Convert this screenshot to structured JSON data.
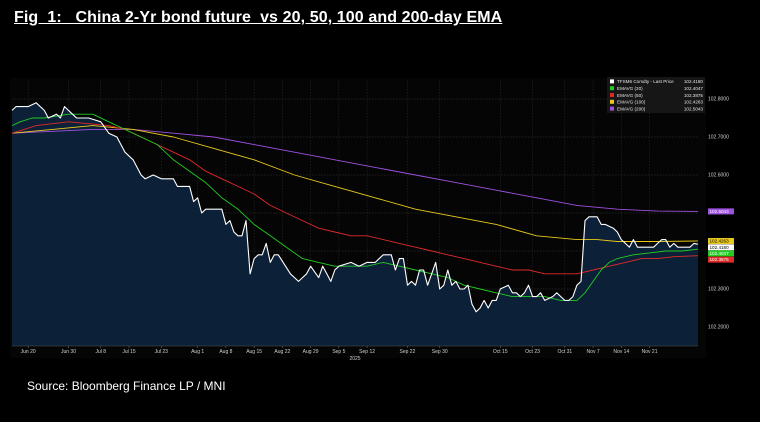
{
  "figure": {
    "title": "Fig  1:   China 2-Yr bond future  vs 20, 50, 100 and 200-day EMA",
    "source": "Source: Bloomberg Finance LP / MNI"
  },
  "colors": {
    "price": "#ffffff",
    "ema20": "#22cc22",
    "ema50": "#e02a2a",
    "ema100": "#e8c81a",
    "ema200": "#a050e0",
    "area": "#0c2038",
    "grid": "#3a3a3a"
  },
  "chart_data": {
    "type": "line",
    "x_start": "2025-06-16",
    "x_end": "2025-11-24",
    "ylim": [
      102.15,
      102.85
    ],
    "y_ticks": [
      102.2,
      102.3,
      102.4,
      102.5,
      102.6,
      102.7,
      102.8
    ],
    "y_tick_labels": [
      "102.2000",
      "102.3000",
      "102.4000",
      "102.5000",
      "102.6000",
      "102.7000",
      "102.8000"
    ],
    "x_ticks": [
      {
        "date": "2025-06-20",
        "label": "Jun 20"
      },
      {
        "date": "2025-06-30",
        "label": "Jun 30"
      },
      {
        "date": "2025-07-08",
        "label": "Jul 8"
      },
      {
        "date": "2025-07-15",
        "label": "Jul 15"
      },
      {
        "date": "2025-07-23",
        "label": "Jul 23"
      },
      {
        "date": "2025-08-01",
        "label": "Aug 1"
      },
      {
        "date": "2025-08-08",
        "label": "Aug 8"
      },
      {
        "date": "2025-08-15",
        "label": "Aug 15"
      },
      {
        "date": "2025-08-22",
        "label": "Aug 22"
      },
      {
        "date": "2025-08-29",
        "label": "Aug 29"
      },
      {
        "date": "2025-09-05",
        "label": "Sep 5"
      },
      {
        "date": "2025-09-12",
        "label": "Sep 12"
      },
      {
        "date": "2025-09-22",
        "label": "Sep 22"
      },
      {
        "date": "2025-09-30",
        "label": "Sep 30"
      },
      {
        "date": "2025-10-15",
        "label": "Oct 15"
      },
      {
        "date": "2025-10-23",
        "label": "Oct 23"
      },
      {
        "date": "2025-10-31",
        "label": "Oct 31"
      },
      {
        "date": "2025-11-07",
        "label": "Nov 7"
      },
      {
        "date": "2025-11-14",
        "label": "Nov 14"
      },
      {
        "date": "2025-11-21",
        "label": "Nov 21"
      }
    ],
    "year_label": "2025",
    "legend": [
      {
        "key": "price",
        "label": "TFSM6 Comdty - Last Price",
        "value": "102.4180"
      },
      {
        "key": "ema20",
        "label": "EMAVG (20)",
        "value": "102.4047"
      },
      {
        "key": "ema50",
        "label": "EMAVG (50)",
        "value": "102.3875"
      },
      {
        "key": "ema100",
        "label": "EMAVG (100)",
        "value": "102.4263"
      },
      {
        "key": "ema200",
        "label": "EMAVG (200)",
        "value": "102.5043"
      }
    ],
    "series": [
      {
        "name": "TFSM6 Comdty - Last Price",
        "key": "price",
        "values": [
          [
            0,
            102.77
          ],
          [
            1,
            102.78
          ],
          [
            4,
            102.78
          ],
          [
            6,
            102.79
          ],
          [
            8,
            102.77
          ],
          [
            9,
            102.75
          ],
          [
            11,
            102.76
          ],
          [
            12,
            102.75
          ],
          [
            13,
            102.78
          ],
          [
            15,
            102.76
          ],
          [
            16,
            102.75
          ],
          [
            19,
            102.75
          ],
          [
            22,
            102.74
          ],
          [
            24,
            102.71
          ],
          [
            26,
            102.7
          ],
          [
            28,
            102.66
          ],
          [
            30,
            102.64
          ],
          [
            31,
            102.62
          ],
          [
            32,
            102.6
          ],
          [
            33,
            102.59
          ],
          [
            35,
            102.6
          ],
          [
            37,
            102.59
          ],
          [
            40,
            102.59
          ],
          [
            41,
            102.57
          ],
          [
            44,
            102.57
          ],
          [
            45,
            102.53
          ],
          [
            46,
            102.54
          ],
          [
            47,
            102.5
          ],
          [
            48,
            102.51
          ],
          [
            52,
            102.51
          ],
          [
            53,
            102.47
          ],
          [
            54,
            102.48
          ],
          [
            55,
            102.45
          ],
          [
            56,
            102.44
          ],
          [
            57,
            102.44
          ],
          [
            58,
            102.48
          ],
          [
            59,
            102.34
          ],
          [
            60,
            102.38
          ],
          [
            61,
            102.39
          ],
          [
            62,
            102.39
          ],
          [
            63,
            102.42
          ],
          [
            64,
            102.37
          ],
          [
            65,
            102.39
          ],
          [
            66,
            102.39
          ],
          [
            69,
            102.34
          ],
          [
            70,
            102.33
          ],
          [
            71,
            102.32
          ],
          [
            72,
            102.33
          ],
          [
            73,
            102.34
          ],
          [
            74,
            102.36
          ],
          [
            76,
            102.33
          ],
          [
            77,
            102.36
          ],
          [
            78,
            102.34
          ],
          [
            79,
            102.32
          ],
          [
            80,
            102.35
          ],
          [
            81,
            102.36
          ],
          [
            84,
            102.37
          ],
          [
            86,
            102.36
          ],
          [
            88,
            102.37
          ],
          [
            90,
            102.37
          ],
          [
            92,
            102.39
          ],
          [
            94,
            102.39
          ],
          [
            95,
            102.35
          ],
          [
            96,
            102.38
          ],
          [
            97,
            102.38
          ],
          [
            98,
            102.31
          ],
          [
            99,
            102.32
          ],
          [
            100,
            102.31
          ],
          [
            101,
            102.35
          ],
          [
            102,
            102.35
          ],
          [
            103,
            102.31
          ],
          [
            104,
            102.34
          ],
          [
            105,
            102.37
          ],
          [
            106,
            102.3
          ],
          [
            107,
            102.31
          ],
          [
            108,
            102.35
          ],
          [
            109,
            102.31
          ],
          [
            110,
            102.32
          ],
          [
            111,
            102.3
          ],
          [
            112,
            102.3
          ],
          [
            113,
            102.31
          ],
          [
            114,
            102.26
          ],
          [
            115,
            102.24
          ],
          [
            116,
            102.25
          ],
          [
            117,
            102.27
          ],
          [
            118,
            102.25
          ],
          [
            119,
            102.27
          ],
          [
            120,
            102.27
          ],
          [
            121,
            102.3
          ],
          [
            123,
            102.31
          ],
          [
            124,
            102.29
          ],
          [
            125,
            102.29
          ],
          [
            126,
            102.28
          ],
          [
            127,
            102.29
          ],
          [
            128,
            102.31
          ],
          [
            129,
            102.28
          ],
          [
            130,
            102.28
          ],
          [
            131,
            102.29
          ],
          [
            132,
            102.27
          ],
          [
            134,
            102.28
          ],
          [
            135,
            102.29
          ],
          [
            136,
            102.28
          ],
          [
            137,
            102.27
          ],
          [
            138,
            102.27
          ],
          [
            139,
            102.28
          ],
          [
            140,
            102.31
          ],
          [
            141,
            102.32
          ],
          [
            142,
            102.48
          ],
          [
            143,
            102.49
          ],
          [
            144,
            102.49
          ],
          [
            145,
            102.49
          ],
          [
            146,
            102.47
          ],
          [
            147,
            102.47
          ],
          [
            149,
            102.46
          ],
          [
            150,
            102.45
          ],
          [
            151,
            102.43
          ],
          [
            152,
            102.42
          ],
          [
            153,
            102.41
          ],
          [
            154,
            102.43
          ],
          [
            155,
            102.41
          ],
          [
            156,
            102.41
          ],
          [
            157,
            102.41
          ],
          [
            158,
            102.41
          ],
          [
            159,
            102.41
          ],
          [
            160,
            102.42
          ],
          [
            161,
            102.43
          ],
          [
            162,
            102.43
          ],
          [
            163,
            102.41
          ],
          [
            164,
            102.42
          ],
          [
            165,
            102.41
          ],
          [
            166,
            102.41
          ],
          [
            167,
            102.41
          ],
          [
            168,
            102.41
          ],
          [
            169,
            102.42
          ],
          [
            170,
            102.418
          ]
        ]
      },
      {
        "name": "EMAVG (20)",
        "key": "ema20",
        "values": [
          [
            0,
            102.73
          ],
          [
            2,
            102.74
          ],
          [
            5,
            102.75
          ],
          [
            8,
            102.75
          ],
          [
            14,
            102.76
          ],
          [
            20,
            102.76
          ],
          [
            24,
            102.74
          ],
          [
            28,
            102.72
          ],
          [
            32,
            102.7
          ],
          [
            36,
            102.68
          ],
          [
            40,
            102.64
          ],
          [
            44,
            102.61
          ],
          [
            48,
            102.58
          ],
          [
            52,
            102.54
          ],
          [
            56,
            102.51
          ],
          [
            60,
            102.47
          ],
          [
            64,
            102.44
          ],
          [
            68,
            102.41
          ],
          [
            72,
            102.38
          ],
          [
            76,
            102.37
          ],
          [
            80,
            102.36
          ],
          [
            84,
            102.36
          ],
          [
            88,
            102.36
          ],
          [
            92,
            102.37
          ],
          [
            96,
            102.36
          ],
          [
            100,
            102.35
          ],
          [
            104,
            102.34
          ],
          [
            108,
            102.33
          ],
          [
            112,
            102.31
          ],
          [
            116,
            102.3
          ],
          [
            120,
            102.29
          ],
          [
            124,
            102.28
          ],
          [
            128,
            102.28
          ],
          [
            132,
            102.28
          ],
          [
            136,
            102.27
          ],
          [
            140,
            102.27
          ],
          [
            142,
            102.29
          ],
          [
            144,
            102.32
          ],
          [
            146,
            102.35
          ],
          [
            148,
            102.37
          ],
          [
            150,
            102.38
          ],
          [
            154,
            102.39
          ],
          [
            158,
            102.395
          ],
          [
            162,
            102.4
          ],
          [
            166,
            102.4
          ],
          [
            170,
            102.4047
          ]
        ]
      },
      {
        "name": "EMAVG (50)",
        "key": "ema50",
        "values": [
          [
            0,
            102.71
          ],
          [
            6,
            102.73
          ],
          [
            14,
            102.74
          ],
          [
            24,
            102.73
          ],
          [
            28,
            102.72
          ],
          [
            32,
            102.7
          ],
          [
            36,
            102.68
          ],
          [
            40,
            102.66
          ],
          [
            44,
            102.64
          ],
          [
            48,
            102.61
          ],
          [
            52,
            102.59
          ],
          [
            56,
            102.57
          ],
          [
            60,
            102.55
          ],
          [
            64,
            102.52
          ],
          [
            68,
            102.5
          ],
          [
            72,
            102.48
          ],
          [
            76,
            102.46
          ],
          [
            80,
            102.45
          ],
          [
            84,
            102.44
          ],
          [
            88,
            102.44
          ],
          [
            92,
            102.43
          ],
          [
            96,
            102.42
          ],
          [
            100,
            102.41
          ],
          [
            104,
            102.4
          ],
          [
            108,
            102.39
          ],
          [
            112,
            102.38
          ],
          [
            116,
            102.37
          ],
          [
            120,
            102.36
          ],
          [
            124,
            102.35
          ],
          [
            128,
            102.35
          ],
          [
            132,
            102.34
          ],
          [
            136,
            102.34
          ],
          [
            140,
            102.34
          ],
          [
            144,
            102.35
          ],
          [
            148,
            102.36
          ],
          [
            152,
            102.37
          ],
          [
            156,
            102.38
          ],
          [
            160,
            102.38
          ],
          [
            164,
            102.385
          ],
          [
            170,
            102.3875
          ]
        ]
      },
      {
        "name": "EMAVG (100)",
        "key": "ema100",
        "values": [
          [
            0,
            102.71
          ],
          [
            10,
            102.72
          ],
          [
            20,
            102.73
          ],
          [
            30,
            102.72
          ],
          [
            40,
            102.7
          ],
          [
            50,
            102.67
          ],
          [
            60,
            102.64
          ],
          [
            70,
            102.6
          ],
          [
            80,
            102.57
          ],
          [
            90,
            102.54
          ],
          [
            100,
            102.51
          ],
          [
            110,
            102.49
          ],
          [
            120,
            102.47
          ],
          [
            130,
            102.44
          ],
          [
            140,
            102.43
          ],
          [
            145,
            102.43
          ],
          [
            150,
            102.425
          ],
          [
            160,
            102.425
          ],
          [
            170,
            102.4263
          ]
        ]
      },
      {
        "name": "EMAVG (200)",
        "key": "ema200",
        "values": [
          [
            0,
            102.71
          ],
          [
            10,
            102.715
          ],
          [
            20,
            102.72
          ],
          [
            30,
            102.72
          ],
          [
            40,
            102.71
          ],
          [
            50,
            102.7
          ],
          [
            60,
            102.68
          ],
          [
            70,
            102.66
          ],
          [
            80,
            102.64
          ],
          [
            90,
            102.62
          ],
          [
            100,
            102.6
          ],
          [
            110,
            102.58
          ],
          [
            120,
            102.56
          ],
          [
            130,
            102.54
          ],
          [
            140,
            102.52
          ],
          [
            150,
            102.51
          ],
          [
            160,
            102.505
          ],
          [
            170,
            102.5043
          ]
        ]
      }
    ]
  }
}
